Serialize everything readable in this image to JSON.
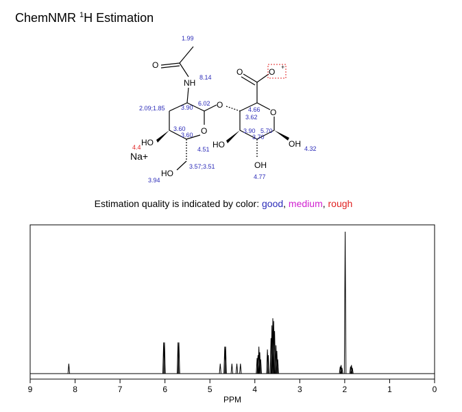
{
  "header": {
    "prefix": "ChemNMR",
    "superscript": "1",
    "text": "H Estimation"
  },
  "molecule": {
    "atoms": [
      "O",
      "NH",
      "O",
      "O",
      "O",
      "O",
      "O",
      "HO",
      "HO",
      "HO",
      "OH",
      "OH",
      "Na+",
      "+"
    ],
    "shifts": [
      {
        "text": "1.99",
        "color": "#2a2ab8"
      },
      {
        "text": "8.14",
        "color": "#2a2ab8"
      },
      {
        "text": "2.09;1.85",
        "color": "#2a2ab8"
      },
      {
        "text": "3.90",
        "color": "#2a2ab8"
      },
      {
        "text": "6.02",
        "color": "#2a2ab8"
      },
      {
        "text": "3.60",
        "color": "#2a2ab8"
      },
      {
        "text": "3.60",
        "color": "#2a2ab8"
      },
      {
        "text": "4.51",
        "color": "#2a2ab8"
      },
      {
        "text": "3.57;3.51",
        "color": "#2a2ab8"
      },
      {
        "text": "3.94",
        "color": "#2a2ab8"
      },
      {
        "text": "4.4",
        "color": "#e02020"
      },
      {
        "text": "4.66",
        "color": "#2a2ab8"
      },
      {
        "text": "3.62",
        "color": "#2a2ab8"
      },
      {
        "text": "3.90",
        "color": "#2a2ab8"
      },
      {
        "text": "5.70",
        "color": "#2a2ab8"
      },
      {
        "text": "3.70",
        "color": "#2a2ab8"
      },
      {
        "text": "4.32",
        "color": "#2a2ab8"
      },
      {
        "text": "4.77",
        "color": "#2a2ab8"
      }
    ]
  },
  "quality": {
    "text": "Estimation quality is indicated by color:",
    "separator": ",",
    "items": [
      {
        "name": "good",
        "color": "#2a2ab8"
      },
      {
        "name": "medium",
        "color": "#d020d0"
      },
      {
        "name": "rough",
        "color": "#e02020"
      }
    ]
  },
  "chart_data": {
    "type": "nmr-spectrum",
    "xlabel": "PPM",
    "xlim": [
      9,
      0
    ],
    "xticks": [
      9,
      8,
      7,
      6,
      5,
      4,
      3,
      2,
      1,
      0
    ],
    "ylim": [
      0,
      100
    ],
    "color": "#000000",
    "x": [
      8.14,
      6.03,
      6.01,
      5.71,
      5.69,
      4.77,
      4.67,
      4.65,
      4.51,
      4.4,
      4.32,
      3.95,
      3.93,
      3.91,
      3.89,
      3.87,
      3.72,
      3.7,
      3.64,
      3.62,
      3.6,
      3.58,
      3.56,
      3.53,
      3.51,
      3.49,
      2.1,
      2.08,
      2.06,
      1.99,
      1.87,
      1.85,
      1.83
    ],
    "values": [
      7,
      22,
      22,
      22,
      22,
      7,
      19,
      19,
      7,
      7,
      7,
      11,
      13,
      19,
      15,
      10,
      17,
      13,
      25,
      34,
      39,
      37,
      30,
      20,
      16,
      10,
      5,
      6,
      4,
      100,
      5,
      6,
      4
    ]
  }
}
